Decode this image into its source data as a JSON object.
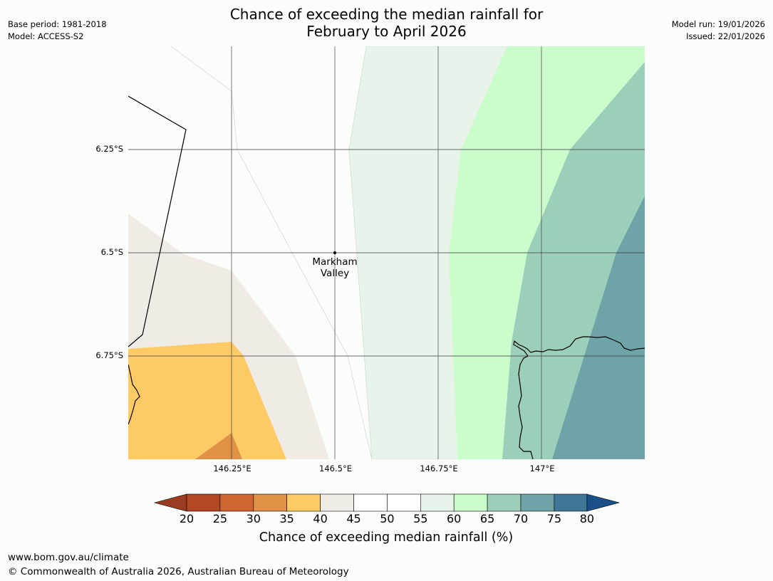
{
  "title": {
    "line1": "Chance of exceeding the median rainfall for",
    "line2": "February to April 2026"
  },
  "meta_left": {
    "base_period": "Base period: 1981-2018",
    "model": "Model: ACCESS-S2"
  },
  "meta_right": {
    "model_run": "Model run: 19/01/2026",
    "issued": "Issued: 22/01/2026"
  },
  "map": {
    "lat_labels": [
      "6.25°S",
      "6.5°S",
      "6.75°S"
    ],
    "lon_labels": [
      "146.25°E",
      "146.5°E",
      "146.75°E",
      "147°E"
    ],
    "place": {
      "name_line1": "Markham",
      "name_line2": "Valley"
    }
  },
  "colorbar": {
    "ticks": [
      "20",
      "25",
      "30",
      "35",
      "40",
      "45",
      "50",
      "55",
      "60",
      "65",
      "70",
      "75",
      "80"
    ],
    "label": "Chance of exceeding median rainfall (%)",
    "colors": {
      "below_20": "#9a3b22",
      "20_25": "#b24826",
      "25_30": "#cf6530",
      "30_35": "#e09146",
      "35_40": "#fdca66",
      "40_45": "#f1ebe6",
      "45_50": "#ffffff",
      "50_55": "#ffffff",
      "55_60": "#e8f4ea",
      "60_65": "#cbfccb",
      "65_70": "#9ccfb9",
      "70_75": "#6ea4a7",
      "75_80": "#3f7797",
      "above_80": "#1a4f87"
    }
  },
  "footer": {
    "url": "www.bom.gov.au/climate",
    "copyright": "© Commonwealth of Australia 2026, Australian Bureau of Meteorology"
  }
}
